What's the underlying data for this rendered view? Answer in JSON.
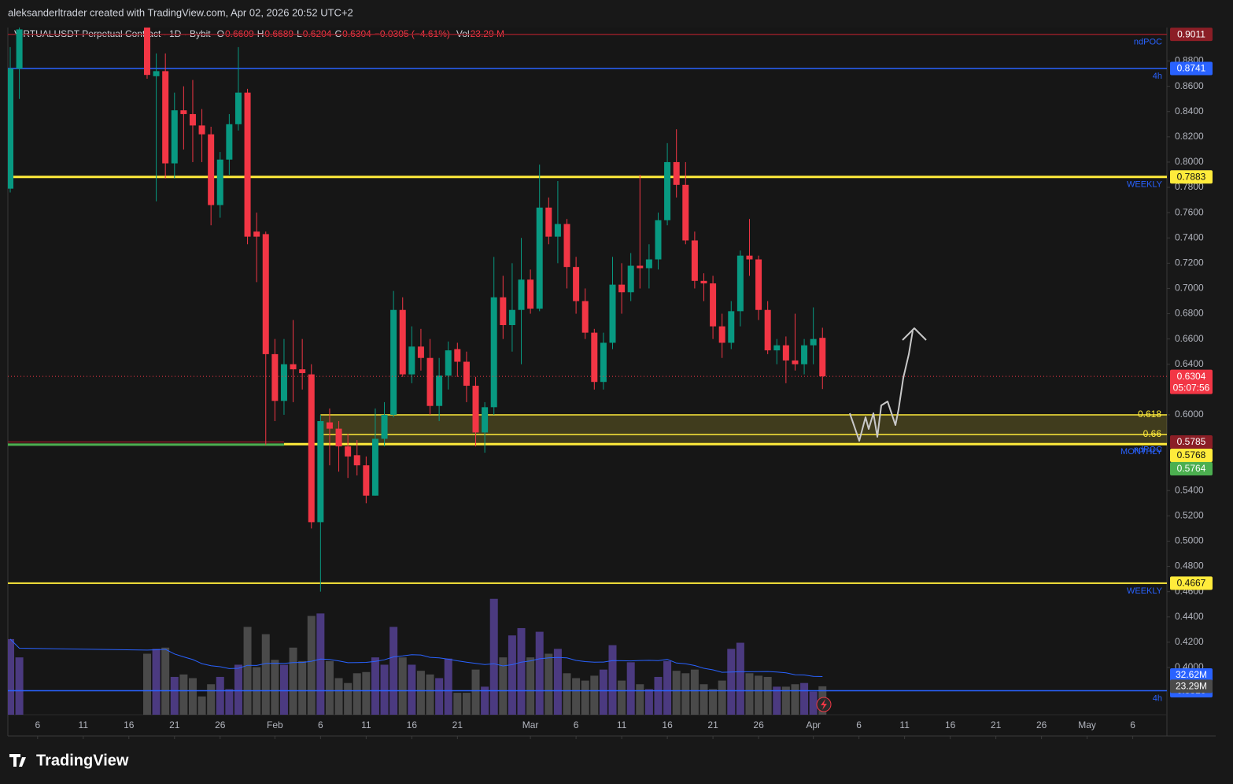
{
  "header": {
    "credit": "aleksanderltrader created with TradingView.com, Apr 02, 2026 20:52 UTC+2",
    "symbol": "VIRTUALUSDT Perpetual Contract · 1D · Bybit",
    "o_label": "O",
    "o": 0.6609,
    "h_label": "H",
    "h": 0.6689,
    "l_label": "L",
    "l": 0.6204,
    "c_label": "C",
    "c": 0.6304,
    "change": "−0.0305 (−4.61%)",
    "vol_label": "Vol",
    "vol": "23.29 M"
  },
  "footer": {
    "brand": "TradingView"
  },
  "chart_data": {
    "type": "candlestick",
    "xlim": [
      "2026-01-03",
      "2026-05-10"
    ],
    "ylim": [
      0.3626,
      0.9065
    ],
    "yticks": [
      {
        "value": 0.88,
        "label": "0.8800"
      },
      {
        "value": 0.86,
        "label": "0.8600"
      },
      {
        "value": 0.84,
        "label": "0.8400"
      },
      {
        "value": 0.82,
        "label": "0.8200"
      },
      {
        "value": 0.8,
        "label": "0.8000"
      },
      {
        "value": 0.78,
        "label": "0.7800"
      },
      {
        "value": 0.76,
        "label": "0.7600"
      },
      {
        "value": 0.74,
        "label": "0.7400"
      },
      {
        "value": 0.72,
        "label": "0.7200"
      },
      {
        "value": 0.7,
        "label": "0.7000"
      },
      {
        "value": 0.68,
        "label": "0.6800"
      },
      {
        "value": 0.66,
        "label": "0.6600"
      },
      {
        "value": 0.64,
        "label": "0.6400"
      },
      {
        "value": 0.6,
        "label": "0.6000"
      },
      {
        "value": 0.54,
        "label": "0.5400"
      },
      {
        "value": 0.52,
        "label": "0.5200"
      },
      {
        "value": 0.5,
        "label": "0.5000"
      },
      {
        "value": 0.48,
        "label": "0.4800"
      },
      {
        "value": 0.46,
        "label": "0.4600"
      },
      {
        "value": 0.44,
        "label": "0.4400"
      },
      {
        "value": 0.42,
        "label": "0.4200"
      },
      {
        "value": 0.4,
        "label": "0.4000"
      }
    ],
    "xticks": [
      {
        "value": "2026-01-06",
        "label": "6"
      },
      {
        "value": "2026-01-11",
        "label": "11"
      },
      {
        "value": "2026-01-16",
        "label": "16"
      },
      {
        "value": "2026-01-21",
        "label": "21"
      },
      {
        "value": "2026-01-26",
        "label": "26"
      },
      {
        "value": "2026-02-01",
        "label": "Feb"
      },
      {
        "value": "2026-02-06",
        "label": "6"
      },
      {
        "value": "2026-02-11",
        "label": "11"
      },
      {
        "value": "2026-02-16",
        "label": "16"
      },
      {
        "value": "2026-02-21",
        "label": "21"
      },
      {
        "value": "2026-03-01",
        "label": "Mar"
      },
      {
        "value": "2026-03-06",
        "label": "6"
      },
      {
        "value": "2026-03-11",
        "label": "11"
      },
      {
        "value": "2026-03-16",
        "label": "16"
      },
      {
        "value": "2026-03-21",
        "label": "21"
      },
      {
        "value": "2026-03-26",
        "label": "26"
      },
      {
        "value": "2026-04-01",
        "label": "Apr"
      },
      {
        "value": "2026-04-06",
        "label": "6"
      },
      {
        "value": "2026-04-11",
        "label": "11"
      },
      {
        "value": "2026-04-16",
        "label": "16"
      },
      {
        "value": "2026-04-21",
        "label": "21"
      },
      {
        "value": "2026-04-26",
        "label": "26"
      },
      {
        "value": "2026-05-01",
        "label": "May"
      },
      {
        "value": "2026-05-06",
        "label": "6"
      }
    ],
    "up_color": "#089981",
    "down_color": "#f23645",
    "volume_colors": {
      "up": "#4b3a80",
      "down": "#4a4a4a"
    },
    "x": [
      "2026-01-03",
      "2026-01-04",
      "2026-01-18",
      "2026-01-19",
      "2026-01-20",
      "2026-01-21",
      "2026-01-22",
      "2026-01-23",
      "2026-01-24",
      "2026-01-25",
      "2026-01-26",
      "2026-01-27",
      "2026-01-28",
      "2026-01-29",
      "2026-01-30",
      "2026-01-31",
      "2026-02-01",
      "2026-02-02",
      "2026-02-03",
      "2026-02-04",
      "2026-02-05",
      "2026-02-06",
      "2026-02-07",
      "2026-02-08",
      "2026-02-09",
      "2026-02-10",
      "2026-02-11",
      "2026-02-12",
      "2026-02-13",
      "2026-02-14",
      "2026-02-15",
      "2026-02-16",
      "2026-02-17",
      "2026-02-18",
      "2026-02-19",
      "2026-02-20",
      "2026-02-21",
      "2026-02-22",
      "2026-02-23",
      "2026-02-24",
      "2026-02-25",
      "2026-02-26",
      "2026-02-27",
      "2026-02-28",
      "2026-03-01",
      "2026-03-02",
      "2026-03-03",
      "2026-03-04",
      "2026-03-05",
      "2026-03-06",
      "2026-03-07",
      "2026-03-08",
      "2026-03-09",
      "2026-03-10",
      "2026-03-11",
      "2026-03-12",
      "2026-03-13",
      "2026-03-14",
      "2026-03-15",
      "2026-03-16",
      "2026-03-17",
      "2026-03-18",
      "2026-03-19",
      "2026-03-20",
      "2026-03-21",
      "2026-03-22",
      "2026-03-23",
      "2026-03-24",
      "2026-03-25",
      "2026-03-26",
      "2026-03-27",
      "2026-03-28",
      "2026-03-29",
      "2026-03-30",
      "2026-03-31",
      "2026-04-01",
      "2026-04-02"
    ],
    "ohlc": [
      [
        0.779,
        0.891,
        0.776,
        0.874
      ],
      [
        0.874,
        0.91,
        0.85,
        0.905
      ],
      [
        0.915,
        0.93,
        0.866,
        0.869
      ],
      [
        0.868,
        0.886,
        0.769,
        0.872
      ],
      [
        0.872,
        0.886,
        0.787,
        0.799
      ],
      [
        0.799,
        0.855,
        0.787,
        0.841
      ],
      [
        0.841,
        0.86,
        0.81,
        0.838
      ],
      [
        0.838,
        0.865,
        0.8,
        0.829
      ],
      [
        0.829,
        0.842,
        0.8,
        0.822
      ],
      [
        0.822,
        0.828,
        0.75,
        0.766
      ],
      [
        0.766,
        0.808,
        0.756,
        0.802
      ],
      [
        0.802,
        0.838,
        0.79,
        0.83
      ],
      [
        0.83,
        0.891,
        0.825,
        0.855
      ],
      [
        0.855,
        0.858,
        0.735,
        0.741
      ],
      [
        0.745,
        0.76,
        0.705,
        0.741
      ],
      [
        0.743,
        0.745,
        0.576,
        0.648
      ],
      [
        0.648,
        0.66,
        0.595,
        0.611
      ],
      [
        0.611,
        0.66,
        0.6,
        0.64
      ],
      [
        0.64,
        0.675,
        0.61,
        0.636
      ],
      [
        0.636,
        0.66,
        0.62,
        0.633
      ],
      [
        0.632,
        0.64,
        0.51,
        0.515
      ],
      [
        0.515,
        0.6,
        0.46,
        0.595
      ],
      [
        0.594,
        0.605,
        0.56,
        0.589
      ],
      [
        0.589,
        0.595,
        0.555,
        0.575
      ],
      [
        0.575,
        0.585,
        0.55,
        0.567
      ],
      [
        0.568,
        0.58,
        0.552,
        0.56
      ],
      [
        0.56,
        0.567,
        0.53,
        0.536
      ],
      [
        0.536,
        0.605,
        0.536,
        0.581
      ],
      [
        0.581,
        0.61,
        0.575,
        0.6
      ],
      [
        0.6,
        0.698,
        0.598,
        0.683
      ],
      [
        0.683,
        0.693,
        0.63,
        0.632
      ],
      [
        0.632,
        0.67,
        0.625,
        0.654
      ],
      [
        0.654,
        0.668,
        0.635,
        0.645
      ],
      [
        0.645,
        0.66,
        0.6,
        0.607
      ],
      [
        0.607,
        0.645,
        0.595,
        0.631
      ],
      [
        0.631,
        0.658,
        0.62,
        0.651
      ],
      [
        0.652,
        0.657,
        0.63,
        0.642
      ],
      [
        0.642,
        0.65,
        0.61,
        0.623
      ],
      [
        0.623,
        0.63,
        0.575,
        0.586
      ],
      [
        0.586,
        0.61,
        0.57,
        0.606
      ],
      [
        0.606,
        0.725,
        0.6,
        0.693
      ],
      [
        0.693,
        0.71,
        0.66,
        0.671
      ],
      [
        0.671,
        0.72,
        0.65,
        0.683
      ],
      [
        0.683,
        0.74,
        0.64,
        0.707
      ],
      [
        0.707,
        0.715,
        0.68,
        0.684
      ],
      [
        0.684,
        0.798,
        0.682,
        0.764
      ],
      [
        0.764,
        0.772,
        0.735,
        0.741
      ],
      [
        0.741,
        0.785,
        0.72,
        0.751
      ],
      [
        0.751,
        0.755,
        0.7,
        0.717
      ],
      [
        0.717,
        0.725,
        0.68,
        0.69
      ],
      [
        0.69,
        0.7,
        0.66,
        0.665
      ],
      [
        0.665,
        0.668,
        0.62,
        0.626
      ],
      [
        0.626,
        0.665,
        0.62,
        0.657
      ],
      [
        0.657,
        0.725,
        0.652,
        0.703
      ],
      [
        0.703,
        0.72,
        0.68,
        0.697
      ],
      [
        0.697,
        0.728,
        0.69,
        0.718
      ],
      [
        0.718,
        0.79,
        0.7,
        0.716
      ],
      [
        0.716,
        0.735,
        0.7,
        0.723
      ],
      [
        0.723,
        0.76,
        0.715,
        0.754
      ],
      [
        0.754,
        0.815,
        0.75,
        0.8
      ],
      [
        0.8,
        0.826,
        0.772,
        0.782
      ],
      [
        0.782,
        0.8,
        0.735,
        0.738
      ],
      [
        0.738,
        0.745,
        0.7,
        0.706
      ],
      [
        0.706,
        0.712,
        0.69,
        0.704
      ],
      [
        0.704,
        0.71,
        0.66,
        0.67
      ],
      [
        0.67,
        0.68,
        0.645,
        0.657
      ],
      [
        0.657,
        0.69,
        0.652,
        0.682
      ],
      [
        0.682,
        0.73,
        0.67,
        0.726
      ],
      [
        0.726,
        0.755,
        0.71,
        0.723
      ],
      [
        0.723,
        0.726,
        0.675,
        0.683
      ],
      [
        0.683,
        0.69,
        0.648,
        0.651
      ],
      [
        0.651,
        0.66,
        0.64,
        0.655
      ],
      [
        0.655,
        0.662,
        0.625,
        0.643
      ],
      [
        0.643,
        0.68,
        0.635,
        0.64
      ],
      [
        0.64,
        0.66,
        0.632,
        0.655
      ],
      [
        0.655,
        0.685,
        0.64,
        0.66
      ],
      [
        0.6609,
        0.6689,
        0.6204,
        0.6304
      ]
    ],
    "volume": [
      62,
      47,
      50,
      54,
      55,
      31,
      33,
      30,
      15,
      25,
      31,
      21,
      41,
      72,
      39,
      66,
      45,
      41,
      55,
      44,
      81,
      83,
      44,
      30,
      26,
      34,
      35,
      47,
      41,
      72,
      47,
      41,
      36,
      33,
      30,
      46,
      18,
      18,
      37,
      23,
      95,
      47,
      65,
      71,
      47,
      68,
      50,
      54,
      34,
      30,
      28,
      32,
      37,
      57,
      28,
      43,
      25,
      21,
      31,
      44,
      36,
      34,
      37,
      25,
      21,
      28,
      54,
      59,
      34,
      32,
      31,
      23,
      23,
      25,
      26,
      19,
      23.29
    ],
    "last_volume_label": "23.29M",
    "volume_ma_label": "32.62M",
    "countdown": "05:07:56",
    "levels": [
      {
        "price": 0.9011,
        "color": "#8b1e26",
        "text_color": "#ffffff",
        "note": "ndPOC"
      },
      {
        "price": 0.8741,
        "color": "#2962ff",
        "text_color": "#ffffff",
        "note": "4h"
      },
      {
        "price": 0.7883,
        "color": "#ffeb3b",
        "text_color": "#131313",
        "note": "WEEKLY",
        "width": 3
      },
      {
        "price": 0.5785,
        "color": "#8b1e26",
        "text_color": "#ffffff",
        "note": "ndPOC",
        "to": "2026-02-02"
      },
      {
        "price": 0.5768,
        "color": "#ffeb3b",
        "text_color": "#131313",
        "note": "MONTHLY",
        "from": "2026-02-02",
        "width": 3
      },
      {
        "price": 0.5764,
        "color": "#4caf50",
        "text_color": "#ffffff",
        "to": "2026-02-02",
        "width": 3
      },
      {
        "price": 0.4667,
        "color": "#ffeb3b",
        "text_color": "#131313",
        "note": "WEEKLY",
        "width": 2
      },
      {
        "price": 0.3816,
        "color": "#2962ff",
        "text_color": "#ffffff",
        "note": "4h"
      }
    ],
    "fib": {
      "from": "2026-02-06",
      "color": "#ffeb3b",
      "levels": [
        {
          "value": 0.6,
          "label": "0.618"
        },
        {
          "value": 0.5844,
          "label": "0.66"
        }
      ]
    }
  }
}
